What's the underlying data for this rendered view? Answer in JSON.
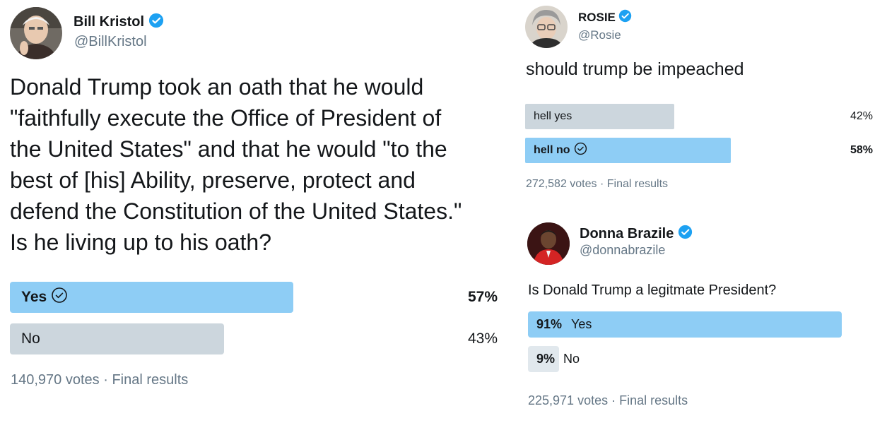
{
  "kristol": {
    "name": "Bill Kristol",
    "handle": "@BillKristol",
    "question_lines": [
      "Donald Trump took an oath that he would",
      "\"faithfully execute the Office of President of",
      "the United States\" and that he would \"to the",
      "best of [his] Ability, preserve, protect and",
      "defend the Constitution of the United States.\"",
      "Is he living up to his oath?"
    ],
    "options": [
      {
        "label": "Yes",
        "percent_label": "57%",
        "percent": 57,
        "winner": true
      },
      {
        "label": "No",
        "percent_label": "43%",
        "percent": 43,
        "winner": false
      }
    ],
    "votes": "140,970 votes",
    "status": "Final results"
  },
  "rosie": {
    "name": "ROSIE",
    "handle": "@Rosie",
    "question": "should trump be impeached",
    "options": [
      {
        "label": "hell yes",
        "percent_label": "42%",
        "percent": 42,
        "winner": false
      },
      {
        "label": "hell no",
        "percent_label": "58%",
        "percent": 58,
        "winner": true
      }
    ],
    "votes": "272,582 votes",
    "status": "Final results"
  },
  "brazile": {
    "name": "Donna Brazile",
    "handle": "@donnabrazile",
    "question": "Is Donald Trump a legitmate President?",
    "options": [
      {
        "label": "Yes",
        "percent_label": "91%",
        "percent": 91,
        "winner": true
      },
      {
        "label": "No",
        "percent_label": "9%",
        "percent": 9,
        "winner": false
      }
    ],
    "votes": "225,971 votes",
    "status": "Final results"
  },
  "separator": "·",
  "colors": {
    "verified": "#1da1f2",
    "winner_bar": "#8ecdf5",
    "loser_bar": "#ccd6dd",
    "secondary_text": "#657786"
  }
}
